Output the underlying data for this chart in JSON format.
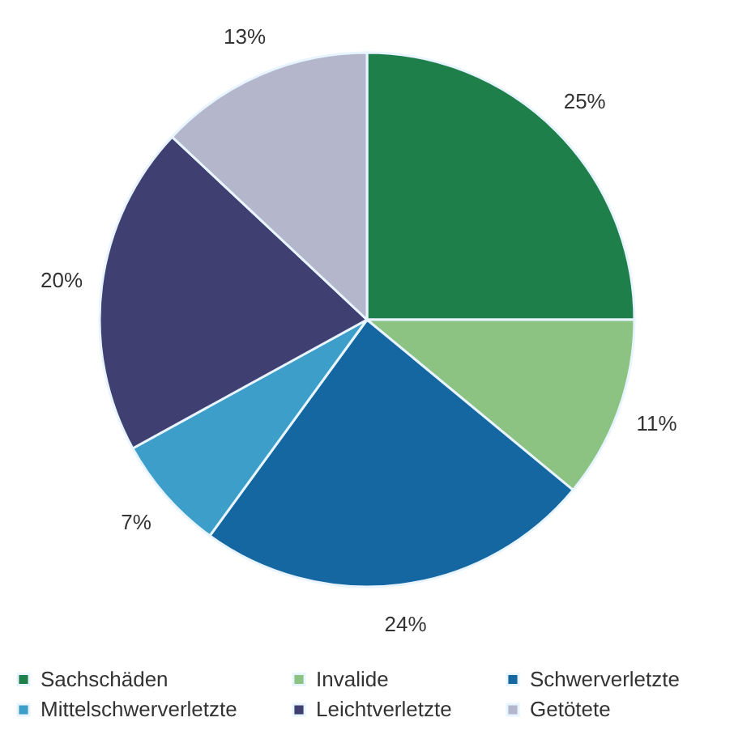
{
  "chart_data": {
    "type": "pie",
    "categories": [
      "Sachschäden",
      "Invalide",
      "Schwerverletzte",
      "Mittelschwerverletzte",
      "Leichtverletzte",
      "Getötete"
    ],
    "values": [
      25,
      11,
      24,
      7,
      20,
      13
    ],
    "value_labels": [
      "25%",
      "11%",
      "24%",
      "7%",
      "20%",
      "13%"
    ],
    "colors": [
      "#1f7f4a",
      "#8cc282",
      "#1467a1",
      "#3d9fc9",
      "#3f3f72",
      "#b4b6cc"
    ],
    "legend": "bottom"
  }
}
